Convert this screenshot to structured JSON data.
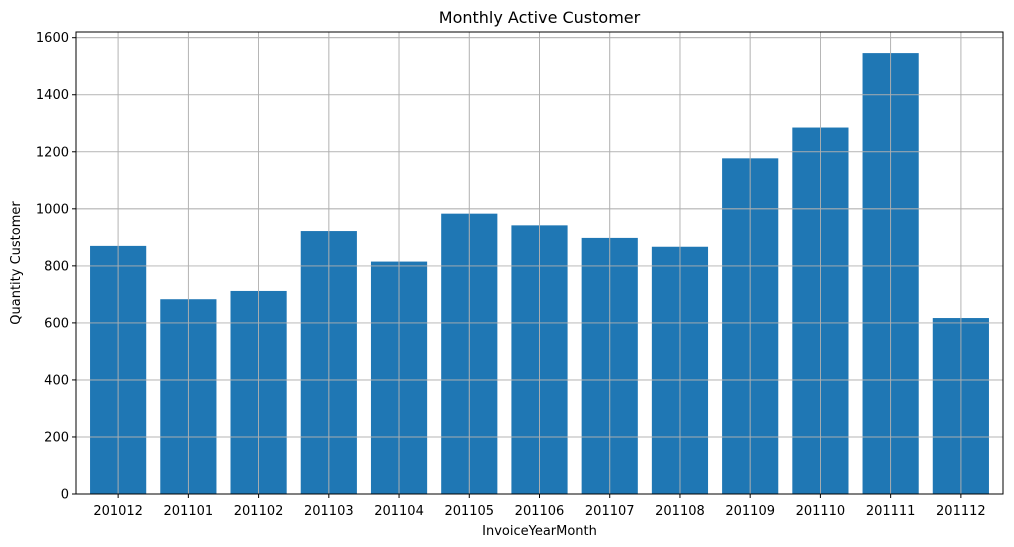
{
  "chart_data": {
    "type": "bar",
    "title": "Monthly Active Customer",
    "xlabel": "InvoiceYearMonth",
    "ylabel": "Quantity Customer",
    "categories": [
      "201012",
      "201101",
      "201102",
      "201103",
      "201104",
      "201105",
      "201106",
      "201107",
      "201108",
      "201109",
      "201110",
      "201111",
      "201112"
    ],
    "values": [
      870,
      683,
      712,
      922,
      815,
      983,
      942,
      898,
      867,
      1177,
      1285,
      1546,
      617
    ],
    "ylim": [
      0,
      1620
    ],
    "yticks": [
      0,
      200,
      400,
      600,
      800,
      1000,
      1200,
      1400,
      1600
    ],
    "grid": true,
    "bar_color": "#1f77b4"
  }
}
